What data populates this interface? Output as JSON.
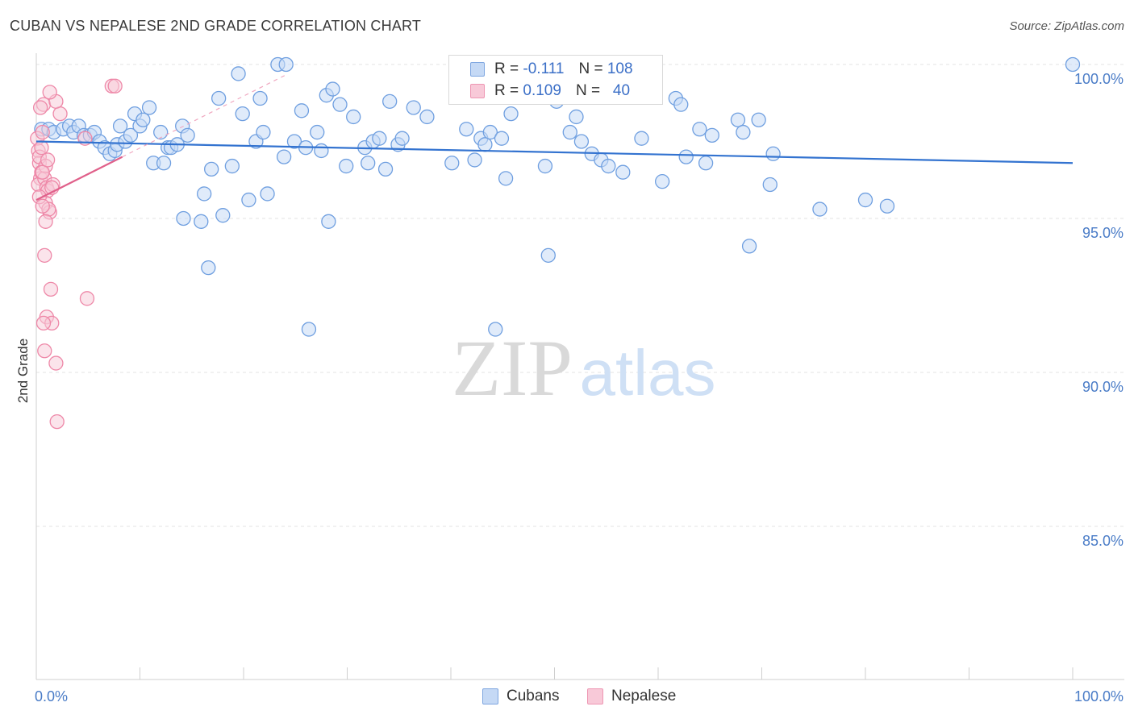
{
  "title": "CUBAN VS NEPALESE 2ND GRADE CORRELATION CHART",
  "source": "Source: ZipAtlas.com",
  "watermark": {
    "zip": "ZIP",
    "atlas": "atlas"
  },
  "legend": {
    "rows": [
      {
        "r_label": "R =",
        "r_value": "-0.111",
        "n_label": "N =",
        "n_value": "108"
      },
      {
        "r_label": "R =",
        "r_value": "0.109",
        "n_label": "N =",
        "n_value": "40"
      }
    ]
  },
  "chart_data": {
    "type": "scatter",
    "title": "CUBAN VS NEPALESE 2ND GRADE CORRELATION CHART",
    "xlabel": "",
    "ylabel": "2nd Grade",
    "xlim": [
      0,
      100
    ],
    "ylim": [
      80.5,
      100.5
    ],
    "x_tick_labels": [
      "0.0%",
      "100.0%"
    ],
    "y_ticks": [
      100,
      95,
      90,
      85
    ],
    "y_tick_labels": [
      "100.0%",
      "95.0%",
      "90.0%",
      "85.0%"
    ],
    "colors": {
      "cubans": "#6f9fe0",
      "cubans_line": "#3373d0",
      "nepalese": "#ee88a8",
      "nepalese_line": "#e0608a"
    },
    "series": [
      {
        "name": "Cubans",
        "r": -0.111,
        "n": 108,
        "trend": {
          "x": [
            0,
            100
          ],
          "y": [
            97.5,
            96.8
          ]
        },
        "points": [
          [
            0.5,
            97.9
          ],
          [
            1.2,
            97.9
          ],
          [
            1.7,
            97.8
          ],
          [
            2.6,
            97.9
          ],
          [
            3.2,
            98.0
          ],
          [
            3.6,
            97.8
          ],
          [
            4.1,
            98.0
          ],
          [
            4.6,
            97.7
          ],
          [
            5.2,
            97.7
          ],
          [
            5.6,
            97.8
          ],
          [
            6.1,
            97.5
          ],
          [
            6.6,
            97.3
          ],
          [
            7.1,
            97.1
          ],
          [
            7.6,
            97.2
          ],
          [
            7.8,
            97.4
          ],
          [
            8.1,
            98.0
          ],
          [
            8.6,
            97.5
          ],
          [
            9.1,
            97.7
          ],
          [
            9.5,
            98.4
          ],
          [
            10.0,
            98.0
          ],
          [
            10.3,
            98.2
          ],
          [
            10.9,
            98.6
          ],
          [
            11.3,
            96.8
          ],
          [
            12.0,
            97.8
          ],
          [
            12.3,
            96.8
          ],
          [
            12.7,
            97.3
          ],
          [
            13.0,
            97.3
          ],
          [
            13.6,
            97.4
          ],
          [
            14.1,
            98.0
          ],
          [
            14.6,
            97.7
          ],
          [
            14.2,
            95.0
          ],
          [
            15.9,
            94.9
          ],
          [
            16.2,
            95.8
          ],
          [
            16.6,
            93.4
          ],
          [
            16.9,
            96.6
          ],
          [
            17.6,
            98.9
          ],
          [
            18.0,
            95.1
          ],
          [
            18.9,
            96.7
          ],
          [
            19.5,
            99.7
          ],
          [
            19.9,
            98.4
          ],
          [
            20.5,
            95.6
          ],
          [
            21.2,
            97.5
          ],
          [
            21.6,
            98.9
          ],
          [
            21.9,
            97.8
          ],
          [
            22.3,
            95.8
          ],
          [
            23.3,
            100.0
          ],
          [
            24.1,
            100.0
          ],
          [
            23.9,
            97.0
          ],
          [
            24.9,
            97.5
          ],
          [
            25.6,
            98.5
          ],
          [
            26.0,
            97.3
          ],
          [
            26.3,
            91.4
          ],
          [
            27.1,
            97.8
          ],
          [
            27.5,
            97.2
          ],
          [
            28.0,
            99.0
          ],
          [
            28.2,
            94.9
          ],
          [
            28.6,
            99.2
          ],
          [
            29.3,
            98.7
          ],
          [
            29.9,
            96.7
          ],
          [
            30.6,
            98.3
          ],
          [
            31.7,
            97.3
          ],
          [
            32.0,
            96.8
          ],
          [
            32.5,
            97.5
          ],
          [
            33.1,
            97.6
          ],
          [
            33.7,
            96.6
          ],
          [
            34.1,
            98.8
          ],
          [
            34.9,
            97.4
          ],
          [
            35.3,
            97.6
          ],
          [
            36.4,
            98.6
          ],
          [
            37.7,
            98.3
          ],
          [
            40.1,
            96.8
          ],
          [
            41.5,
            97.9
          ],
          [
            42.3,
            96.9
          ],
          [
            42.9,
            97.6
          ],
          [
            43.3,
            97.4
          ],
          [
            43.8,
            97.8
          ],
          [
            44.3,
            91.4
          ],
          [
            44.9,
            97.6
          ],
          [
            45.3,
            96.3
          ],
          [
            45.8,
            98.4
          ],
          [
            49.1,
            96.7
          ],
          [
            49.4,
            93.8
          ],
          [
            50.2,
            98.8
          ],
          [
            51.5,
            97.8
          ],
          [
            52.1,
            98.3
          ],
          [
            52.6,
            97.5
          ],
          [
            53.6,
            97.1
          ],
          [
            54.5,
            96.9
          ],
          [
            55.2,
            96.7
          ],
          [
            56.6,
            96.5
          ],
          [
            58.4,
            97.6
          ],
          [
            60.4,
            96.2
          ],
          [
            61.7,
            98.9
          ],
          [
            62.2,
            98.7
          ],
          [
            62.7,
            97.0
          ],
          [
            64.0,
            97.9
          ],
          [
            64.6,
            96.8
          ],
          [
            65.2,
            97.7
          ],
          [
            67.7,
            98.2
          ],
          [
            68.2,
            97.8
          ],
          [
            68.8,
            94.1
          ],
          [
            69.7,
            98.2
          ],
          [
            70.8,
            96.1
          ],
          [
            71.1,
            97.1
          ],
          [
            75.6,
            95.3
          ],
          [
            80.0,
            95.6
          ],
          [
            82.1,
            95.4
          ],
          [
            100.0,
            100.0
          ]
        ]
      },
      {
        "name": "Nepalese",
        "r": 0.109,
        "n": 40,
        "trend": {
          "x": [
            0,
            8.3
          ],
          "y": [
            95.6,
            97.0
          ]
        },
        "points": [
          [
            0.1,
            97.6
          ],
          [
            0.2,
            97.2
          ],
          [
            0.3,
            96.8
          ],
          [
            0.4,
            96.3
          ],
          [
            0.2,
            96.1
          ],
          [
            0.5,
            96.5
          ],
          [
            0.6,
            97.8
          ],
          [
            0.7,
            98.7
          ],
          [
            0.4,
            98.6
          ],
          [
            0.3,
            97.0
          ],
          [
            0.8,
            96.3
          ],
          [
            0.9,
            96.7
          ],
          [
            0.6,
            96.5
          ],
          [
            1.0,
            96.0
          ],
          [
            1.1,
            95.9
          ],
          [
            0.9,
            95.5
          ],
          [
            1.3,
            95.2
          ],
          [
            1.2,
            95.3
          ],
          [
            0.9,
            94.9
          ],
          [
            0.8,
            93.8
          ],
          [
            1.4,
            92.7
          ],
          [
            1.0,
            91.8
          ],
          [
            1.5,
            91.6
          ],
          [
            0.7,
            91.6
          ],
          [
            0.8,
            90.7
          ],
          [
            1.9,
            90.3
          ],
          [
            2.0,
            88.4
          ],
          [
            1.6,
            96.1
          ],
          [
            2.3,
            98.4
          ],
          [
            1.9,
            98.8
          ],
          [
            1.3,
            99.1
          ],
          [
            4.7,
            97.6
          ],
          [
            4.9,
            92.4
          ],
          [
            7.3,
            99.3
          ],
          [
            7.6,
            99.3
          ],
          [
            0.5,
            97.3
          ],
          [
            1.1,
            96.9
          ],
          [
            0.3,
            95.7
          ],
          [
            0.6,
            95.4
          ],
          [
            1.5,
            96.0
          ]
        ]
      }
    ]
  },
  "bottom_legend": [
    {
      "label": "Cubans"
    },
    {
      "label": "Nepalese"
    }
  ]
}
